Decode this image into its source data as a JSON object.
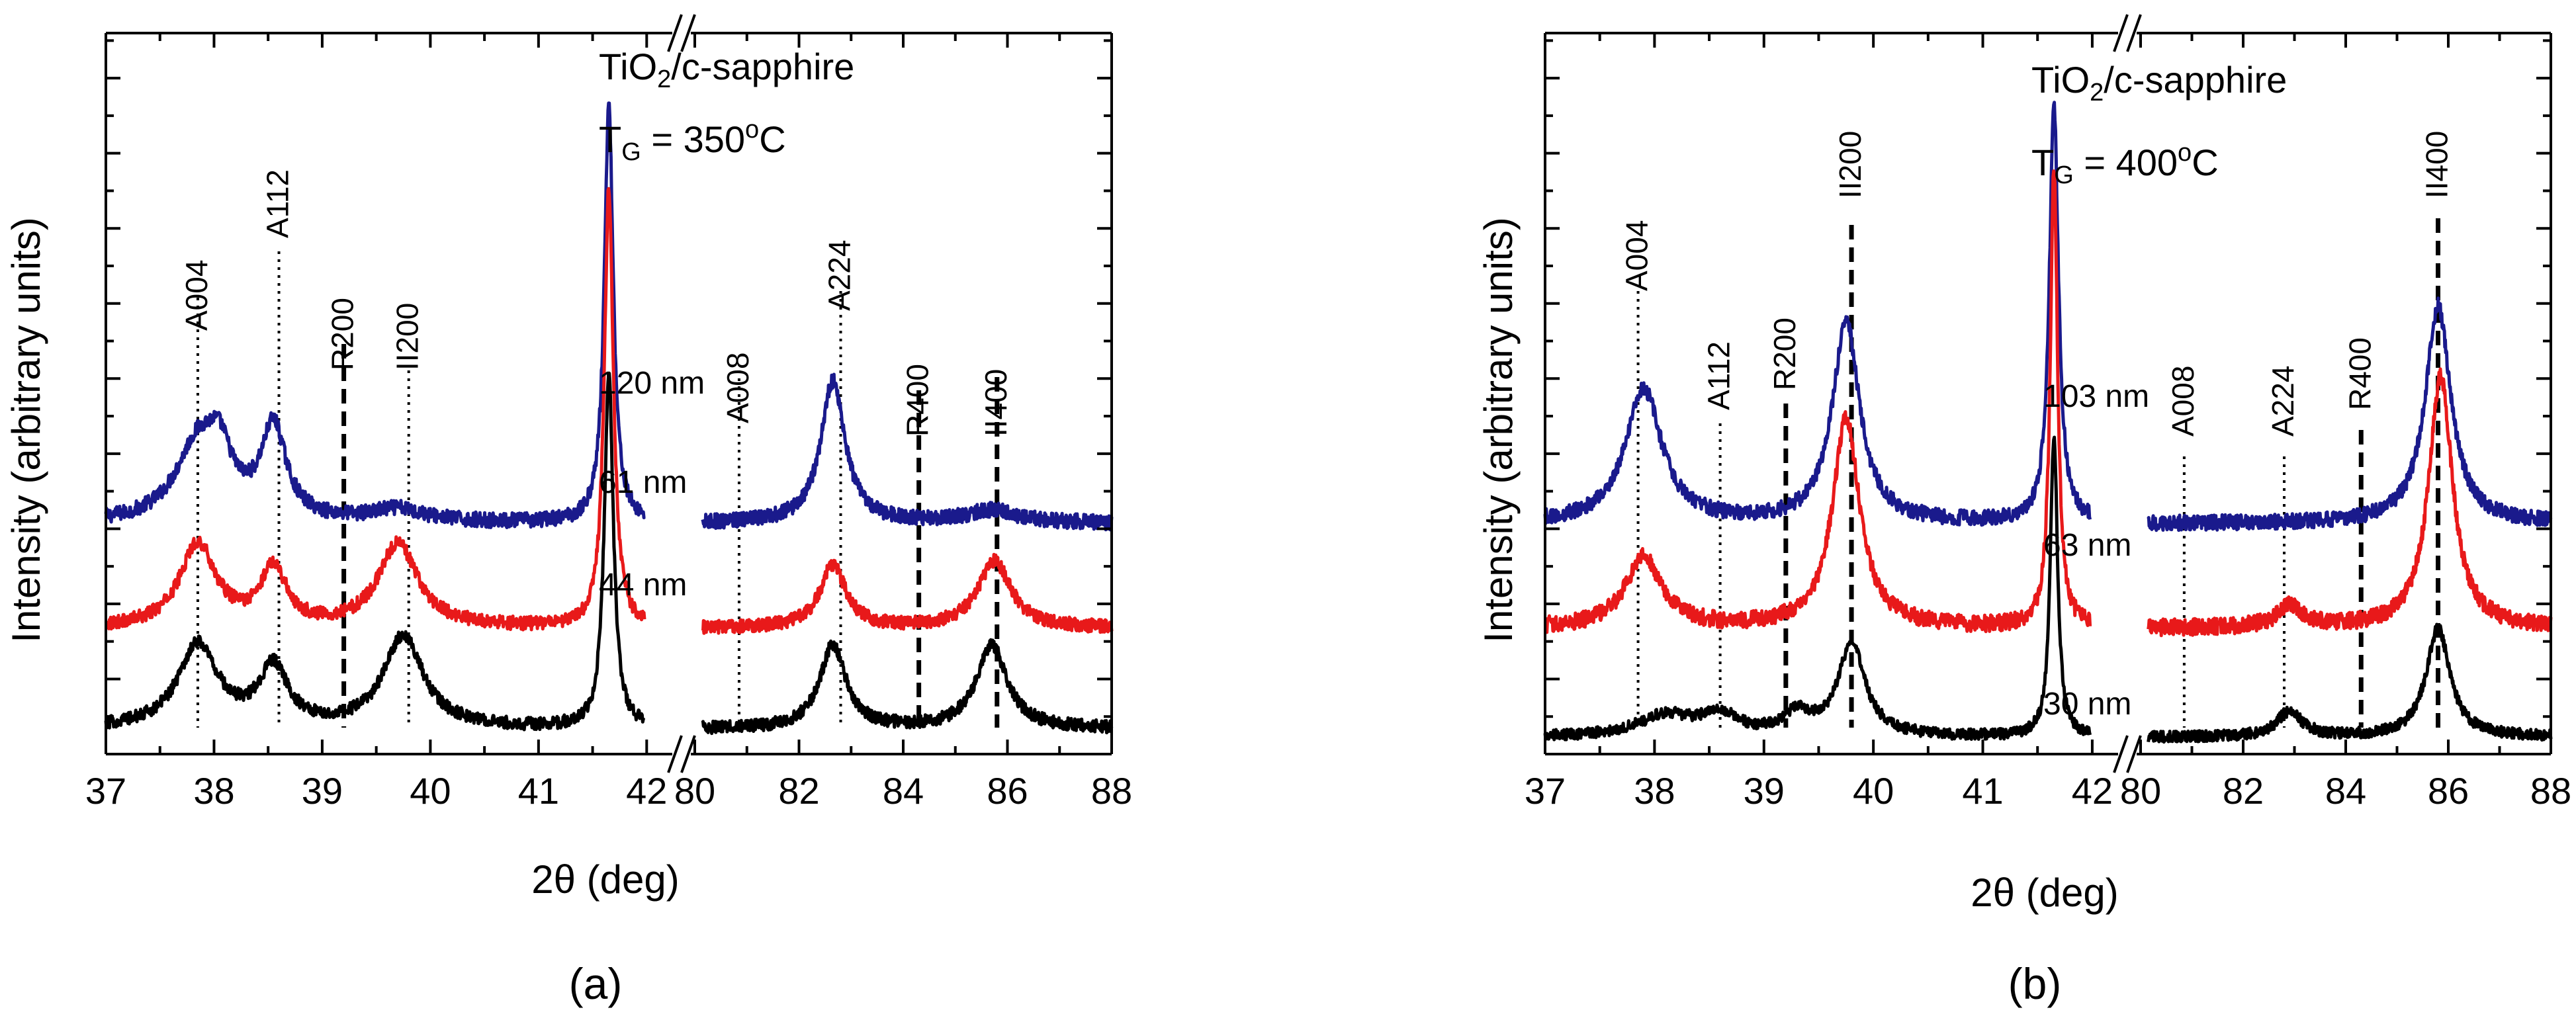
{
  "figure": {
    "xlabel": "2θ (deg)",
    "ylabel": "Intensity (arbitrary units)"
  },
  "chart_data": [
    {
      "type": "line",
      "panel_label": "(a)",
      "title": "TiO2/c-sapphire",
      "growth_temperature_label": "TG = 350°C",
      "xlabel": "2θ (deg)",
      "ylabel": "Intensity (arbitrary units)",
      "broken_x_axis": true,
      "x_segments": [
        {
          "range": [
            37,
            42.2
          ],
          "ticks": [
            37,
            38,
            39,
            40,
            41,
            42
          ]
        },
        {
          "range": [
            80,
            88
          ],
          "ticks": [
            80,
            82,
            84,
            86,
            88
          ]
        }
      ],
      "y_ticks_labeled": false,
      "series": [
        {
          "name": "120 nm",
          "color": "#1a1a8c",
          "offset": 0.55,
          "noise": 0.018,
          "peaks": [
            [
              37.85,
              0.18,
              0.25
            ],
            [
              38.05,
              0.12,
              0.14
            ],
            [
              38.55,
              0.22,
              0.14
            ],
            [
              39.7,
              0.03,
              0.3
            ],
            [
              41.65,
              1.0,
              0.05
            ],
            [
              82.65,
              0.34,
              0.28
            ],
            [
              85.7,
              0.03,
              0.6
            ]
          ]
        },
        {
          "name": "61 nm",
          "color": "#e8191a",
          "offset": 0.3,
          "noise": 0.016,
          "peaks": [
            [
              37.85,
              0.2,
              0.2
            ],
            [
              38.55,
              0.14,
              0.14
            ],
            [
              39.7,
              0.2,
              0.22
            ],
            [
              41.65,
              1.05,
              0.05
            ],
            [
              82.65,
              0.15,
              0.3
            ],
            [
              85.75,
              0.16,
              0.38
            ]
          ]
        },
        {
          "name": "44 nm",
          "color": "#000000",
          "offset": 0.06,
          "noise": 0.015,
          "peaks": [
            [
              37.85,
              0.2,
              0.22
            ],
            [
              38.55,
              0.14,
              0.16
            ],
            [
              39.75,
              0.22,
              0.22
            ],
            [
              41.65,
              0.85,
              0.05
            ],
            [
              82.65,
              0.2,
              0.3
            ],
            [
              85.7,
              0.2,
              0.35
            ]
          ]
        }
      ],
      "reference_lines": [
        {
          "label": "A004",
          "x": 37.85,
          "style": "dotted"
        },
        {
          "label": "A112",
          "x": 38.6,
          "style": "dotted"
        },
        {
          "label": "R200",
          "x": 39.2,
          "style": "dashed"
        },
        {
          "label": "II200",
          "x": 39.8,
          "style": "dotted"
        },
        {
          "label": "A008",
          "x": 80.85,
          "style": "dotted"
        },
        {
          "label": "A224",
          "x": 82.8,
          "style": "dotted"
        },
        {
          "label": "R400",
          "x": 84.3,
          "style": "dashed"
        },
        {
          "label": "II400",
          "x": 85.8,
          "style": "dashed"
        }
      ]
    },
    {
      "type": "line",
      "panel_label": "(b)",
      "title": "TiO2/c-sapphire",
      "growth_temperature_label": "TG = 400°C",
      "xlabel": "2θ (deg)",
      "ylabel": "Intensity (arbitrary units)",
      "broken_x_axis": true,
      "x_segments": [
        {
          "range": [
            37,
            42.2
          ],
          "ticks": [
            37,
            38,
            39,
            40,
            41,
            42
          ]
        },
        {
          "range": [
            80,
            88
          ],
          "ticks": [
            80,
            82,
            84,
            86,
            88
          ]
        }
      ],
      "y_ticks_labeled": false,
      "series": [
        {
          "name": "103 nm",
          "color": "#1a1a8c",
          "offset": 0.55,
          "noise": 0.018,
          "peaks": [
            [
              37.9,
              0.32,
              0.2
            ],
            [
              39.75,
              0.48,
              0.15
            ],
            [
              41.65,
              1.0,
              0.05
            ],
            [
              85.8,
              0.52,
              0.3
            ]
          ]
        },
        {
          "name": "63 nm",
          "color": "#e8191a",
          "offset": 0.3,
          "noise": 0.02,
          "peaks": [
            [
              37.9,
              0.17,
              0.2
            ],
            [
              39.75,
              0.5,
              0.15
            ],
            [
              41.65,
              1.1,
              0.04
            ],
            [
              82.9,
              0.05,
              0.3
            ],
            [
              85.85,
              0.6,
              0.28
            ]
          ]
        },
        {
          "name": "30 nm",
          "color": "#000000",
          "offset": 0.04,
          "noise": 0.013,
          "peaks": [
            [
              38.1,
              0.05,
              0.3
            ],
            [
              38.6,
              0.05,
              0.2
            ],
            [
              39.3,
              0.05,
              0.15
            ],
            [
              39.8,
              0.22,
              0.15
            ],
            [
              41.65,
              0.72,
              0.04
            ],
            [
              82.9,
              0.06,
              0.3
            ],
            [
              85.8,
              0.26,
              0.28
            ]
          ]
        }
      ],
      "reference_lines": [
        {
          "label": "A004",
          "x": 37.85,
          "style": "dotted"
        },
        {
          "label": "A112",
          "x": 38.6,
          "style": "dotted"
        },
        {
          "label": "R200",
          "x": 39.2,
          "style": "dashed"
        },
        {
          "label": "II200",
          "x": 39.8,
          "style": "dashed"
        },
        {
          "label": "A008",
          "x": 80.85,
          "style": "dotted"
        },
        {
          "label": "A224",
          "x": 82.8,
          "style": "dotted"
        },
        {
          "label": "R400",
          "x": 84.3,
          "style": "dashed"
        },
        {
          "label": "II400",
          "x": 85.8,
          "style": "dashed"
        }
      ]
    }
  ]
}
